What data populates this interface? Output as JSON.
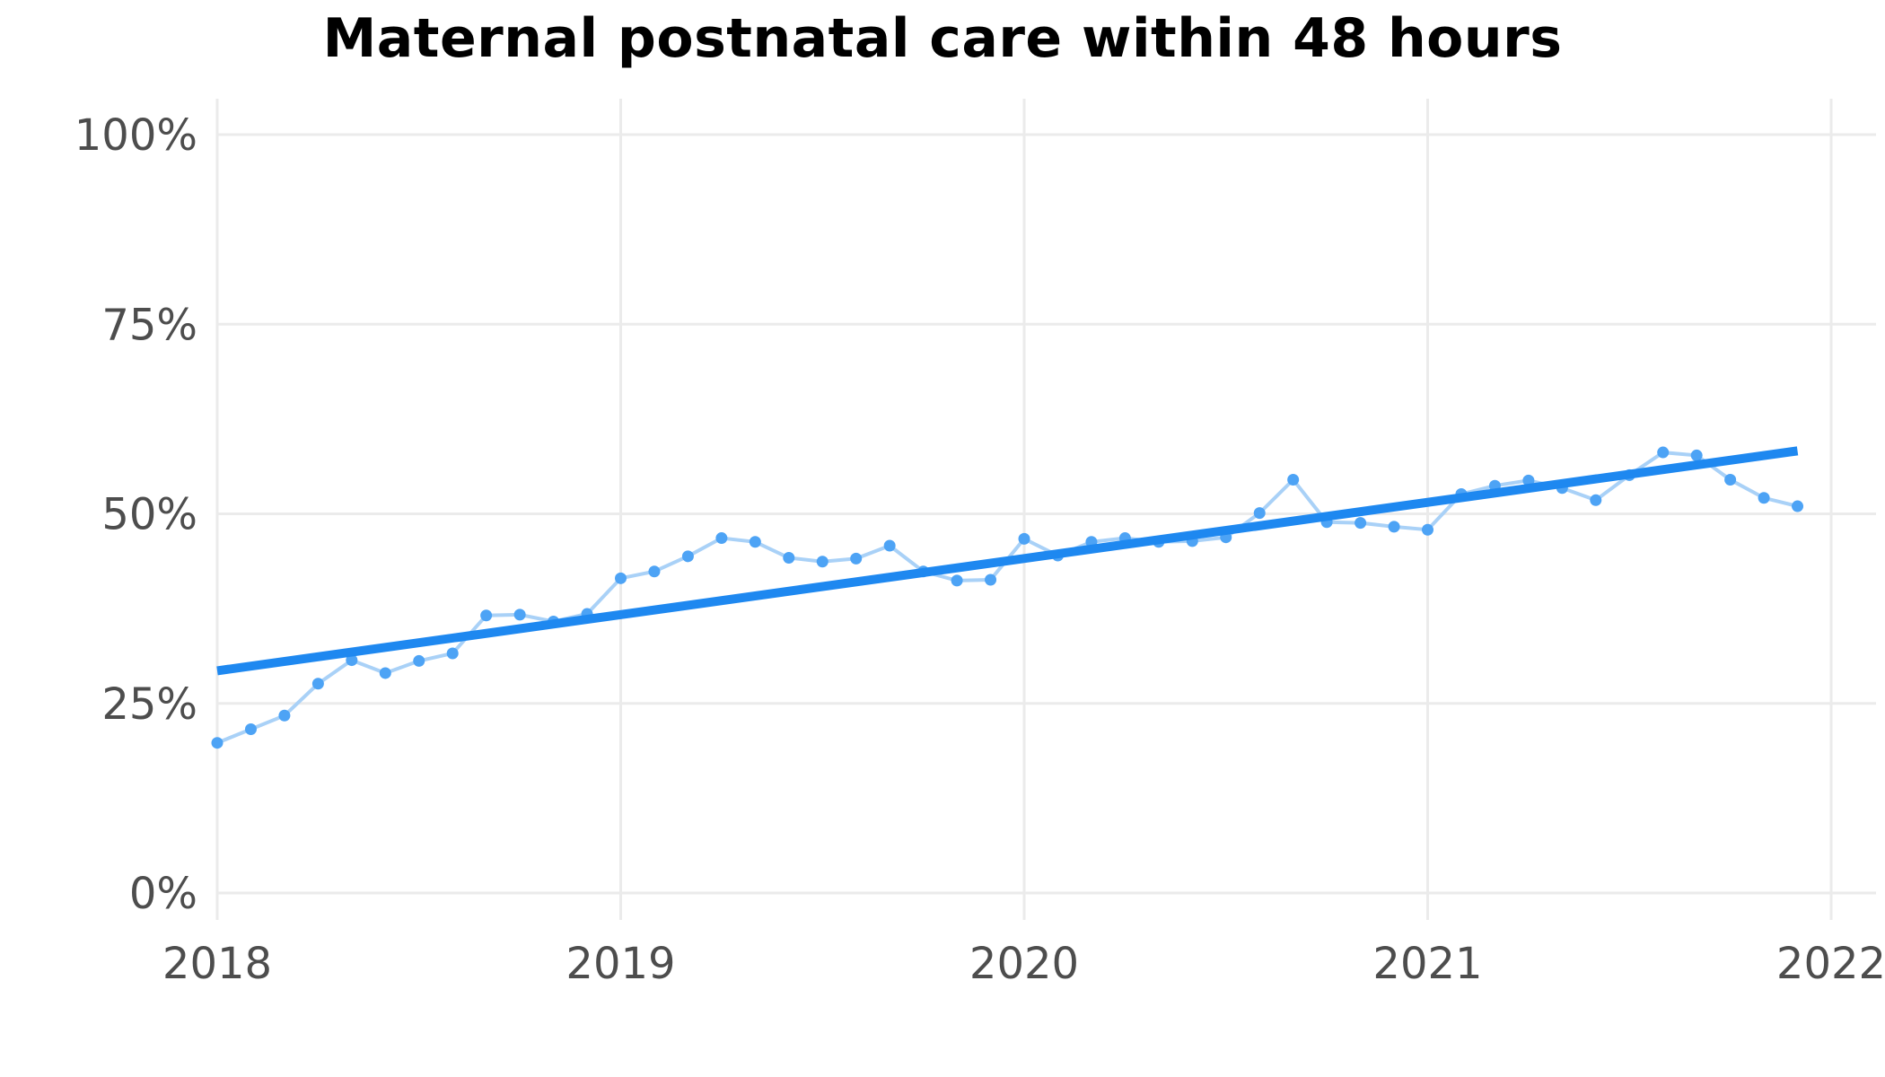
{
  "chart_data": {
    "type": "line",
    "title": "Maternal postnatal care within 48 hours",
    "xlabel": "",
    "ylabel": "",
    "x_ticks": [
      "2018",
      "2019",
      "2020",
      "2021",
      "2022"
    ],
    "y_ticks": [
      "0%",
      "25%",
      "50%",
      "75%",
      "100%"
    ],
    "xlim": [
      "2017-10",
      "2022-01"
    ],
    "ylim": [
      -0.04,
      1.04
    ],
    "grid": true,
    "legend": "none",
    "series": [
      {
        "x": [
          "2018-01",
          "2018-02",
          "2018-03",
          "2018-04",
          "2018-05",
          "2018-06",
          "2018-07",
          "2018-08",
          "2018-09",
          "2018-10",
          "2018-11",
          "2018-12",
          "2019-01",
          "2019-02",
          "2019-03",
          "2019-04",
          "2019-05",
          "2019-06",
          "2019-07",
          "2019-08",
          "2019-09",
          "2019-10",
          "2019-11",
          "2019-12",
          "2020-01",
          "2020-02",
          "2020-03",
          "2020-04",
          "2020-05",
          "2020-06",
          "2020-07",
          "2020-08",
          "2020-09",
          "2020-10",
          "2020-11",
          "2020-12",
          "2021-01",
          "2021-02",
          "2021-03",
          "2021-04",
          "2021-05",
          "2021-06",
          "2021-07",
          "2021-08",
          "2021-09",
          "2021-10",
          "2021-11",
          "2021-12"
        ],
        "values": [
          0.198,
          0.216,
          0.234,
          0.276,
          0.307,
          0.29,
          0.306,
          0.316,
          0.366,
          0.367,
          0.358,
          0.368,
          0.415,
          0.424,
          0.444,
          0.468,
          0.463,
          0.442,
          0.437,
          0.441,
          0.458,
          0.424,
          0.412,
          0.413,
          0.467,
          0.445,
          0.463,
          0.468,
          0.463,
          0.464,
          0.469,
          0.501,
          0.545,
          0.489,
          0.488,
          0.483,
          0.479,
          0.526,
          0.537,
          0.544,
          0.534,
          0.518,
          0.551,
          0.581,
          0.577,
          0.545,
          0.521,
          0.51
        ],
        "color": "#a9d1f7",
        "marker_color": "#4da3f5"
      }
    ],
    "trend": {
      "x": [
        "2018-01",
        "2021-12"
      ],
      "values": [
        0.293,
        0.583
      ],
      "color": "#1e88f0"
    }
  }
}
